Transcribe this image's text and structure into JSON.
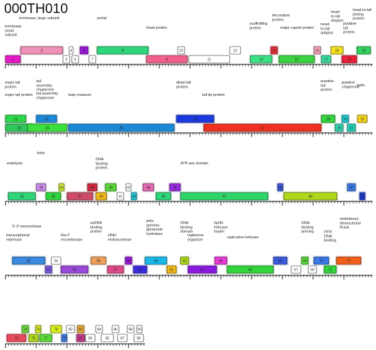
{
  "title": "000TH010",
  "tracks": [
    {
      "labels": [
        {
          "t": "terminase, large subunit"
        },
        {
          "t": "terminase,\nsmall\nsubunit"
        },
        {
          "t": "portal"
        },
        {
          "t": "head protein"
        },
        {
          "t": "scaffolding\nprotein"
        },
        {
          "t": "decoration\nprotein"
        },
        {
          "t": "major capsid protein"
        },
        {
          "t": "head-\nto-tail\nadaptor"
        },
        {
          "t": "head-\nto-tail\nstopper"
        },
        {
          "t": "putative\ntail\nprotein"
        },
        {
          "t": "head-to-tail\njoining\nprotein"
        }
      ],
      "genes": [
        {
          "n": "1",
          "c": "#e619c8",
          "s": "bot"
        },
        {
          "n": "2",
          "c": "#f08fb7",
          "s": "top"
        },
        {
          "n": "3",
          "c": "#ffffff",
          "s": "bot"
        },
        {
          "n": "4",
          "c": "#ffffff",
          "s": "top"
        },
        {
          "n": "5",
          "c": "#ffffff",
          "s": "bot"
        },
        {
          "n": "6",
          "c": "#9a19d9",
          "s": "top"
        },
        {
          "n": "7",
          "c": "#ffffff",
          "s": "bot"
        },
        {
          "n": "8",
          "c": "#2ed67a",
          "s": "top"
        },
        {
          "n": "9",
          "c": "#f0608a",
          "s": "bot"
        },
        {
          "n": "10",
          "c": "#ffffff",
          "s": "top"
        },
        {
          "n": "11",
          "c": "#ffffff",
          "s": "bot"
        },
        {
          "n": "12",
          "c": "#ffffff",
          "s": "top"
        },
        {
          "n": "13",
          "c": "#3ce085",
          "s": "bot"
        },
        {
          "n": "14",
          "c": "#e8303a",
          "s": "top"
        },
        {
          "n": "15",
          "c": "#3ad23f",
          "s": "bot"
        },
        {
          "n": "16",
          "c": "#f5a3b7",
          "s": "top"
        },
        {
          "n": "17",
          "c": "#38d89a",
          "s": "bot"
        },
        {
          "n": "18",
          "c": "#f5e11e",
          "s": "top"
        },
        {
          "n": "19",
          "c": "#e8203a",
          "s": "bot"
        },
        {
          "n": "20",
          "c": "#32d45e",
          "s": "top"
        }
      ]
    },
    {
      "labels": [
        {
          "t": "major tail\nprotein"
        },
        {
          "t": "major tail protein"
        },
        {
          "t": "tail\nassembly\nchaperone"
        },
        {
          "t": "tail assembly\nchaperone"
        },
        {
          "t": "tape measure"
        },
        {
          "t": "distal tail\nprotein"
        },
        {
          "t": "tail tip protein"
        },
        {
          "t": "putative\ntail\nprotein"
        },
        {
          "t": "putative\nchaperone"
        },
        {
          "t": "holin"
        }
      ],
      "genes": [
        {
          "n": "21",
          "c": "#2ed64a",
          "s": "top"
        },
        {
          "n": "22",
          "c": "#2ec85a",
          "s": "bot"
        },
        {
          "n": "23",
          "c": "#1a8ad8",
          "s": "top"
        },
        {
          "n": "24",
          "c": "#3ae03c",
          "s": "bot"
        },
        {
          "n": "25",
          "c": "#1a8ad8",
          "s": "bot"
        },
        {
          "n": "26",
          "c": "#1a3ae0",
          "s": "top"
        },
        {
          "n": "27",
          "c": "#f0301e",
          "s": "bot"
        },
        {
          "n": "28",
          "c": "#32d43c",
          "s": "top"
        },
        {
          "n": "29",
          "c": "#32d4b0",
          "s": "bot"
        },
        {
          "n": "30",
          "c": "#20c8d0",
          "s": "top"
        },
        {
          "n": "31",
          "c": "#20d0b8",
          "s": "bot"
        },
        {
          "n": "32",
          "c": "#f5d218",
          "s": "top"
        }
      ]
    },
    {
      "labels": [
        {
          "t": "endolysin"
        },
        {
          "t": "holin"
        },
        {
          "t": "DNA\nbinding\nprotein"
        },
        {
          "t": "ATP-ase domain"
        }
      ],
      "genes": [
        {
          "n": "33",
          "c": "#2ed678",
          "s": "bot"
        },
        {
          "n": "34",
          "c": "#c88ae8",
          "s": "top"
        },
        {
          "n": "35",
          "c": "#32d43c",
          "s": "bot"
        },
        {
          "n": "36",
          "c": "#d0e83a",
          "s": "top"
        },
        {
          "n": "37",
          "c": "#d04a6a",
          "s": "bot"
        },
        {
          "n": "38",
          "c": "#d02a40",
          "s": "top"
        },
        {
          "n": "39",
          "c": "#f0b818",
          "s": "bot"
        },
        {
          "n": "40",
          "c": "#5ad83a",
          "s": "top"
        },
        {
          "n": "41",
          "c": "#ffffff",
          "s": "bot"
        },
        {
          "n": "42",
          "c": "#ffffff",
          "s": "top"
        },
        {
          "n": "43",
          "c": "#20c8d8",
          "s": "bot"
        },
        {
          "n": "44",
          "c": "#e06ab0",
          "s": "top"
        },
        {
          "n": "45",
          "c": "#2ed67a",
          "s": "bot"
        },
        {
          "n": "46",
          "c": "#9a2ae0",
          "s": "top"
        },
        {
          "n": "47",
          "c": "#2ed668",
          "s": "bot"
        },
        {
          "n": "48",
          "c": "#3a5ae0",
          "s": "top"
        },
        {
          "n": "49",
          "c": "#b0d81a",
          "s": "bot"
        },
        {
          "n": "50",
          "c": "#3a7ae8",
          "s": "top"
        },
        {
          "n": "51",
          "c": "#1a3ad8",
          "s": "bot"
        }
      ]
    },
    {
      "labels": [
        {
          "t": "5'-3' exonuclease"
        },
        {
          "t": "transcriptional\nrepressor"
        },
        {
          "t": "RecT\nrecombinase"
        },
        {
          "t": "ssDNA\nbinding\nprotein"
        },
        {
          "t": "HNH\nendonuclease"
        },
        {
          "t": "poly-\ngamma-\nglutamate\nhydrolase"
        },
        {
          "t": "DNA\nbinding\ndomain"
        },
        {
          "t": "replisome\norganizer"
        },
        {
          "t": "Gp40\nhelicase\nloader"
        },
        {
          "t": "replicative helicase"
        },
        {
          "t": "DNA-\nbinding\npriming"
        },
        {
          "t": "HTH\nDNA\nbinding"
        },
        {
          "t": "endodeoxy-\nribonuclease\nRusA"
        }
      ],
      "genes": [
        {
          "n": "52",
          "c": "#3a8ae0",
          "s": "top"
        },
        {
          "n": "53",
          "c": "#7a5ae0",
          "s": "bot"
        },
        {
          "n": "54",
          "c": "#ffffff",
          "s": "top"
        },
        {
          "n": "55",
          "c": "#9a4ad8",
          "s": "bot"
        },
        {
          "n": "56",
          "c": "#f0a05a",
          "s": "top"
        },
        {
          "n": "57",
          "c": "#e04a8a",
          "s": "bot"
        },
        {
          "n": "58",
          "c": "#9a1ad8",
          "s": "top"
        },
        {
          "n": "59",
          "c": "#3a2ae0",
          "s": "bot"
        },
        {
          "n": "60",
          "c": "#1ab8e8",
          "s": "top"
        },
        {
          "n": "61",
          "c": "#f0b818",
          "s": "bot"
        },
        {
          "n": "62",
          "c": "#b0d81a",
          "s": "top"
        },
        {
          "n": "63",
          "c": "#8a1ae0",
          "s": "bot"
        },
        {
          "n": "64",
          "c": "#e63ad8",
          "s": "top"
        },
        {
          "n": "65",
          "c": "#32d43c",
          "s": "bot"
        },
        {
          "n": "66",
          "c": "#3a5ae0",
          "s": "top"
        },
        {
          "n": "67",
          "c": "#ffffff",
          "s": "bot"
        },
        {
          "n": "68",
          "c": "#5ad83a",
          "s": "top"
        },
        {
          "n": "69",
          "c": "#ffffff",
          "s": "bot"
        },
        {
          "n": "70",
          "c": "#3a7ae8",
          "s": "top"
        },
        {
          "n": "71",
          "c": "#32d43c",
          "s": "bot"
        },
        {
          "n": "72",
          "c": "#f0601a",
          "s": "top"
        }
      ]
    },
    {
      "labels": [],
      "genes": [
        {
          "n": "73",
          "c": "#e84a5a",
          "s": "bot"
        },
        {
          "n": "74",
          "c": "#6ad83a",
          "s": "top"
        },
        {
          "n": "75",
          "c": "#b0d81a",
          "s": "bot"
        },
        {
          "n": "76",
          "c": "#d8e81a",
          "s": "top"
        },
        {
          "n": "77",
          "c": "#5ad83a",
          "s": "bot"
        },
        {
          "n": "78",
          "c": "#d8f01a",
          "s": "top"
        },
        {
          "n": "79",
          "c": "#3a7ae8",
          "s": "bot"
        },
        {
          "n": "80",
          "c": "#ffffff",
          "s": "top"
        },
        {
          "n": "81",
          "c": "#c83a8a",
          "s": "bot"
        },
        {
          "n": "82",
          "c": "#e8a83a",
          "s": "top"
        },
        {
          "n": "83",
          "c": "#ffffff",
          "s": "bot"
        },
        {
          "n": "84",
          "c": "#ffffff",
          "s": "top"
        },
        {
          "n": "85",
          "c": "#ffffff",
          "s": "bot"
        },
        {
          "n": "86",
          "c": "#ffffff",
          "s": "top"
        },
        {
          "n": "87",
          "c": "#ffffff",
          "s": "bot"
        },
        {
          "n": "88",
          "c": "#ffffff",
          "s": "top"
        },
        {
          "n": "89",
          "c": "#ffffff",
          "s": "bot"
        },
        {
          "n": "90",
          "c": "#ffffff",
          "s": "top"
        }
      ]
    }
  ]
}
